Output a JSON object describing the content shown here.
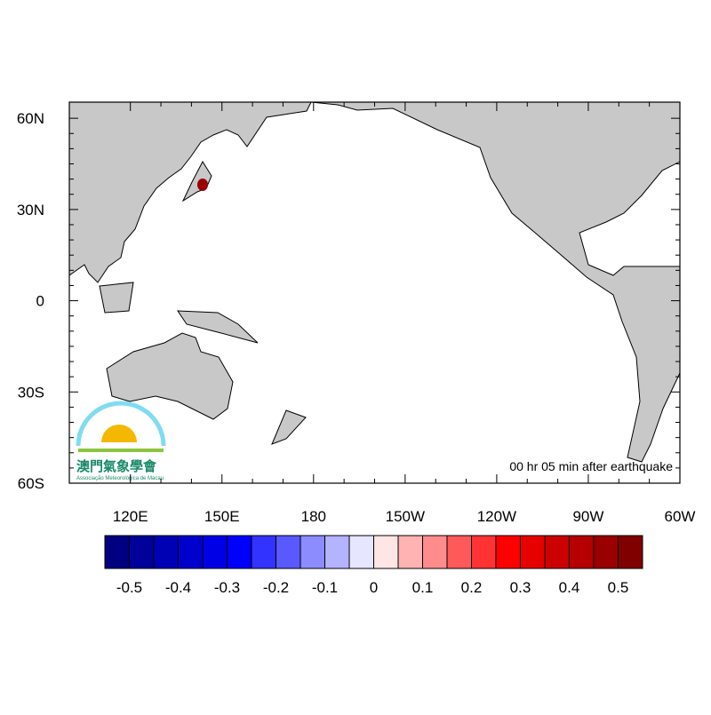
{
  "map": {
    "xlim": [
      100,
      300
    ],
    "ylim": [
      -60,
      65.3
    ],
    "xticks": [
      {
        "value": 120,
        "label": "120E"
      },
      {
        "value": 150,
        "label": "150E"
      },
      {
        "value": 180,
        "label": "180"
      },
      {
        "value": 210,
        "label": "150W"
      },
      {
        "value": 240,
        "label": "120W"
      },
      {
        "value": 270,
        "label": "90W"
      },
      {
        "value": 300,
        "label": "60W"
      }
    ],
    "yticks": [
      {
        "value": 60,
        "label": "60N"
      },
      {
        "value": 30,
        "label": "30N"
      },
      0,
      {
        "value": -30,
        "label": "30S"
      },
      {
        "value": -60,
        "label": "60S"
      }
    ],
    "annotation": "00 hr 05 min after earthquake",
    "logo": {
      "title": "澳門氣象學會",
      "subtitle": "Associação Meteorológica de Macau"
    }
  },
  "colorbar": {
    "levels": [
      -0.5,
      -0.4,
      -0.3,
      -0.2,
      -0.1,
      0,
      0.1,
      0.2,
      0.3,
      0.4,
      0.5
    ],
    "colors": [
      "#000080",
      "#00009a",
      "#0000b4",
      "#0000cd",
      "#0000e6",
      "#0000ff",
      "#3333ff",
      "#5959ff",
      "#8c8cff",
      "#b3b3ff",
      "#e6e6ff",
      "#ffe6e6",
      "#ffb3b3",
      "#ff8c8c",
      "#ff5959",
      "#ff3333",
      "#ff0000",
      "#e60000",
      "#cd0000",
      "#b40000",
      "#9a0000",
      "#800000"
    ]
  }
}
